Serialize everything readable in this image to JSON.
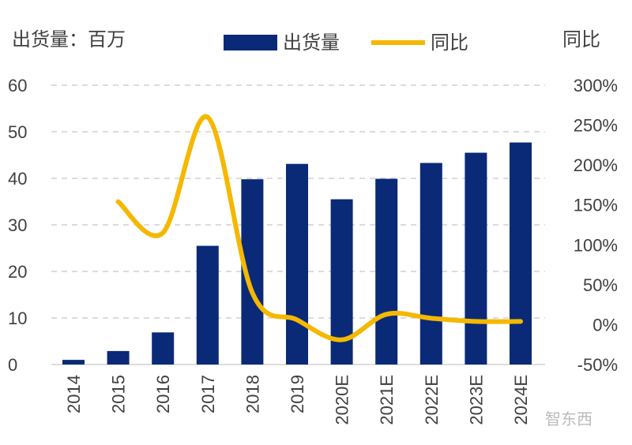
{
  "chart_data": {
    "type": "bar+line",
    "left_axis_title": "出货量：百万",
    "right_axis_title": "同比",
    "categories": [
      "2014",
      "2015",
      "2016",
      "2017",
      "2018",
      "2019",
      "2020E",
      "2021E",
      "2022E",
      "2023E",
      "2024E"
    ],
    "series": [
      {
        "name": "出货量",
        "type": "bar",
        "axis": "left",
        "color": "#0a2a78",
        "values": [
          1.0,
          2.9,
          6.9,
          25.5,
          39.8,
          43.1,
          35.5,
          39.9,
          43.3,
          45.5,
          47.7
        ]
      },
      {
        "name": "同比",
        "type": "line",
        "axis": "right",
        "color": "#f5b800",
        "values": [
          null,
          154,
          115,
          260,
          40,
          6,
          -19,
          13,
          8,
          4,
          4
        ]
      }
    ],
    "left_ylim": [
      0,
      60
    ],
    "left_ticks": [
      "0",
      "10",
      "20",
      "30",
      "40",
      "50",
      "60"
    ],
    "right_ylim": [
      -50,
      300
    ],
    "right_ticks": [
      "-50%",
      "0%",
      "50%",
      "100%",
      "150%",
      "200%",
      "250%",
      "300%"
    ],
    "grid": "dashed horizontal",
    "legend": "top"
  },
  "watermark": "智东西"
}
